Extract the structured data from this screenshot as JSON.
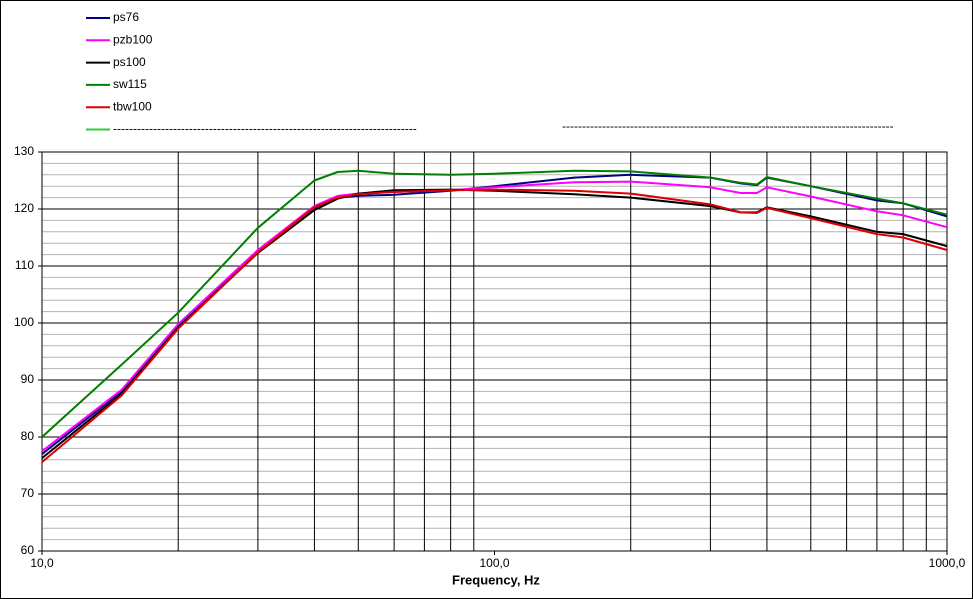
{
  "chart_data": {
    "type": "line",
    "x_label": "Frequency, Hz",
    "x": [
      10,
      15,
      20,
      30,
      40,
      45,
      50,
      60,
      80,
      100,
      150,
      200,
      300,
      350,
      380,
      400,
      500,
      700,
      800,
      1000
    ],
    "series": [
      {
        "name": "ps76",
        "color": "#000080",
        "values": [
          77,
          88,
          99.5,
          112.5,
          120,
          122,
          122.3,
          122.5,
          123.2,
          124,
          125.5,
          126,
          125.5,
          124.5,
          124.2,
          125.5,
          124,
          121.5,
          121,
          118.7
        ]
      },
      {
        "name": "pzb100",
        "color": "#ff00ff",
        "values": [
          77.5,
          88.3,
          99.8,
          112.8,
          120.5,
          122.3,
          122.7,
          123,
          123.3,
          123.8,
          124.7,
          124.8,
          123.8,
          122.8,
          122.8,
          123.8,
          122.2,
          119.6,
          118.9,
          116.8
        ]
      },
      {
        "name": "ps100",
        "color": "#000000",
        "values": [
          76.3,
          87.6,
          99.2,
          112.3,
          119.8,
          121.8,
          122.7,
          123.3,
          123.4,
          123.2,
          122.6,
          122,
          120.5,
          119.4,
          119.4,
          120.3,
          118.7,
          116,
          115.6,
          113.5
        ]
      },
      {
        "name": "sw115",
        "color": "#008000",
        "values": [
          80,
          92.7,
          101.8,
          116.7,
          125,
          126.5,
          126.7,
          126.2,
          126,
          126.2,
          126.7,
          126.6,
          125.5,
          124.6,
          124.3,
          125.6,
          124,
          121.8,
          121,
          119
        ]
      },
      {
        "name": "tbw100",
        "color": "#dd0000",
        "values": [
          75.6,
          87.3,
          99,
          112.4,
          120.3,
          122,
          122.6,
          123,
          123.3,
          123.4,
          123.2,
          122.7,
          120.8,
          119.4,
          119.3,
          120.2,
          118.4,
          115.6,
          115,
          112.8
        ]
      },
      {
        "name": "----------------------------------------------------------------------------",
        "color": "#33cc33",
        "values": [
          null,
          null,
          null,
          null,
          null,
          null,
          null,
          null,
          null,
          null,
          null,
          null,
          null,
          null,
          null,
          null,
          null,
          null,
          null,
          null
        ]
      }
    ],
    "annotation": "-----------------------------------------------------------------------------------",
    "log_x": true,
    "xlim": [
      10,
      1000
    ],
    "xticks": [
      {
        "value": 10,
        "label": "10,0"
      },
      {
        "value": 100,
        "label": "100,0"
      },
      {
        "value": 1000,
        "label": "1000,0"
      }
    ],
    "xgrid": [
      20,
      30,
      40,
      50,
      60,
      70,
      80,
      90,
      200,
      300,
      400,
      500,
      600,
      700,
      800,
      900
    ],
    "ylim": [
      60,
      130
    ],
    "yticks": [
      60,
      70,
      80,
      90,
      100,
      110,
      120,
      130
    ],
    "ygrid_minor": [
      62,
      64,
      66,
      68,
      72,
      74,
      76,
      78,
      82,
      84,
      86,
      88,
      92,
      94,
      96,
      98,
      102,
      104,
      106,
      108,
      112,
      114,
      116,
      118,
      122,
      124,
      126,
      128
    ],
    "grid": true
  }
}
